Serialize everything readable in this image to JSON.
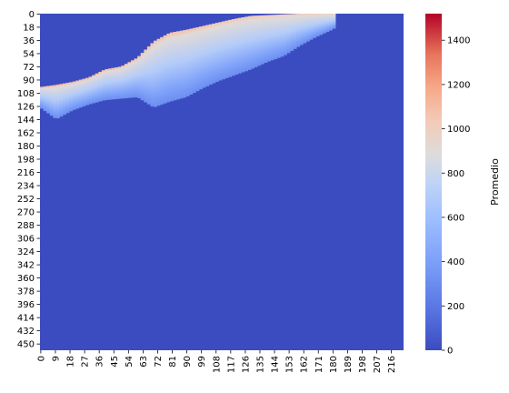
{
  "chart_data": {
    "type": "heatmap",
    "title": "",
    "xlabel": "",
    "ylabel": "",
    "x_tick_labels": [
      "0",
      "9",
      "18",
      "27",
      "36",
      "45",
      "54",
      "63",
      "72",
      "81",
      "90",
      "99",
      "108",
      "117",
      "126",
      "135",
      "144",
      "153",
      "162",
      "171",
      "180",
      "189",
      "198",
      "207",
      "216"
    ],
    "y_tick_labels": [
      "0",
      "18",
      "36",
      "54",
      "72",
      "90",
      "108",
      "126",
      "144",
      "162",
      "180",
      "198",
      "216",
      "234",
      "252",
      "270",
      "288",
      "306",
      "324",
      "342",
      "360",
      "378",
      "396",
      "414",
      "432",
      "450"
    ],
    "x_range": [
      0,
      224
    ],
    "y_range": [
      0,
      459
    ],
    "colorbar": {
      "label": "Promedio",
      "range": [
        0,
        1520
      ],
      "ticks": [
        "0",
        "200",
        "400",
        "600",
        "800",
        "1000",
        "1200",
        "1400"
      ],
      "colormap": "coolwarm",
      "low_color": "#3b4cc0",
      "mid_color": "#dddddd",
      "high_color": "#b40426"
    },
    "background_value": 0,
    "upper_edge_x": [
      0,
      10,
      20,
      30,
      40,
      50,
      60,
      70,
      80,
      90,
      100,
      110,
      120,
      130,
      140,
      150,
      160,
      170,
      180,
      190,
      200,
      210,
      224
    ],
    "upper_edge_row": [
      100,
      97,
      93,
      87,
      76,
      72,
      60,
      38,
      26,
      22,
      17,
      12,
      7,
      3,
      2,
      1,
      0,
      0,
      0,
      0,
      0,
      0,
      0
    ],
    "region_lower_row": [
      128,
      144,
      132,
      124,
      118,
      116,
      114,
      128,
      120,
      114,
      102,
      92,
      84,
      76,
      66,
      58,
      44,
      32,
      22,
      8,
      0,
      0,
      0
    ],
    "region_end_x": 182,
    "gap_lower_row": [
      0,
      0,
      0,
      0,
      0,
      0,
      0,
      0,
      0,
      0,
      0,
      0,
      0,
      0,
      0,
      0,
      0,
      0,
      0,
      0,
      0,
      0,
      0
    ],
    "edge_peak_value": 1150,
    "interior_value": 820,
    "lower_value": 430
  }
}
